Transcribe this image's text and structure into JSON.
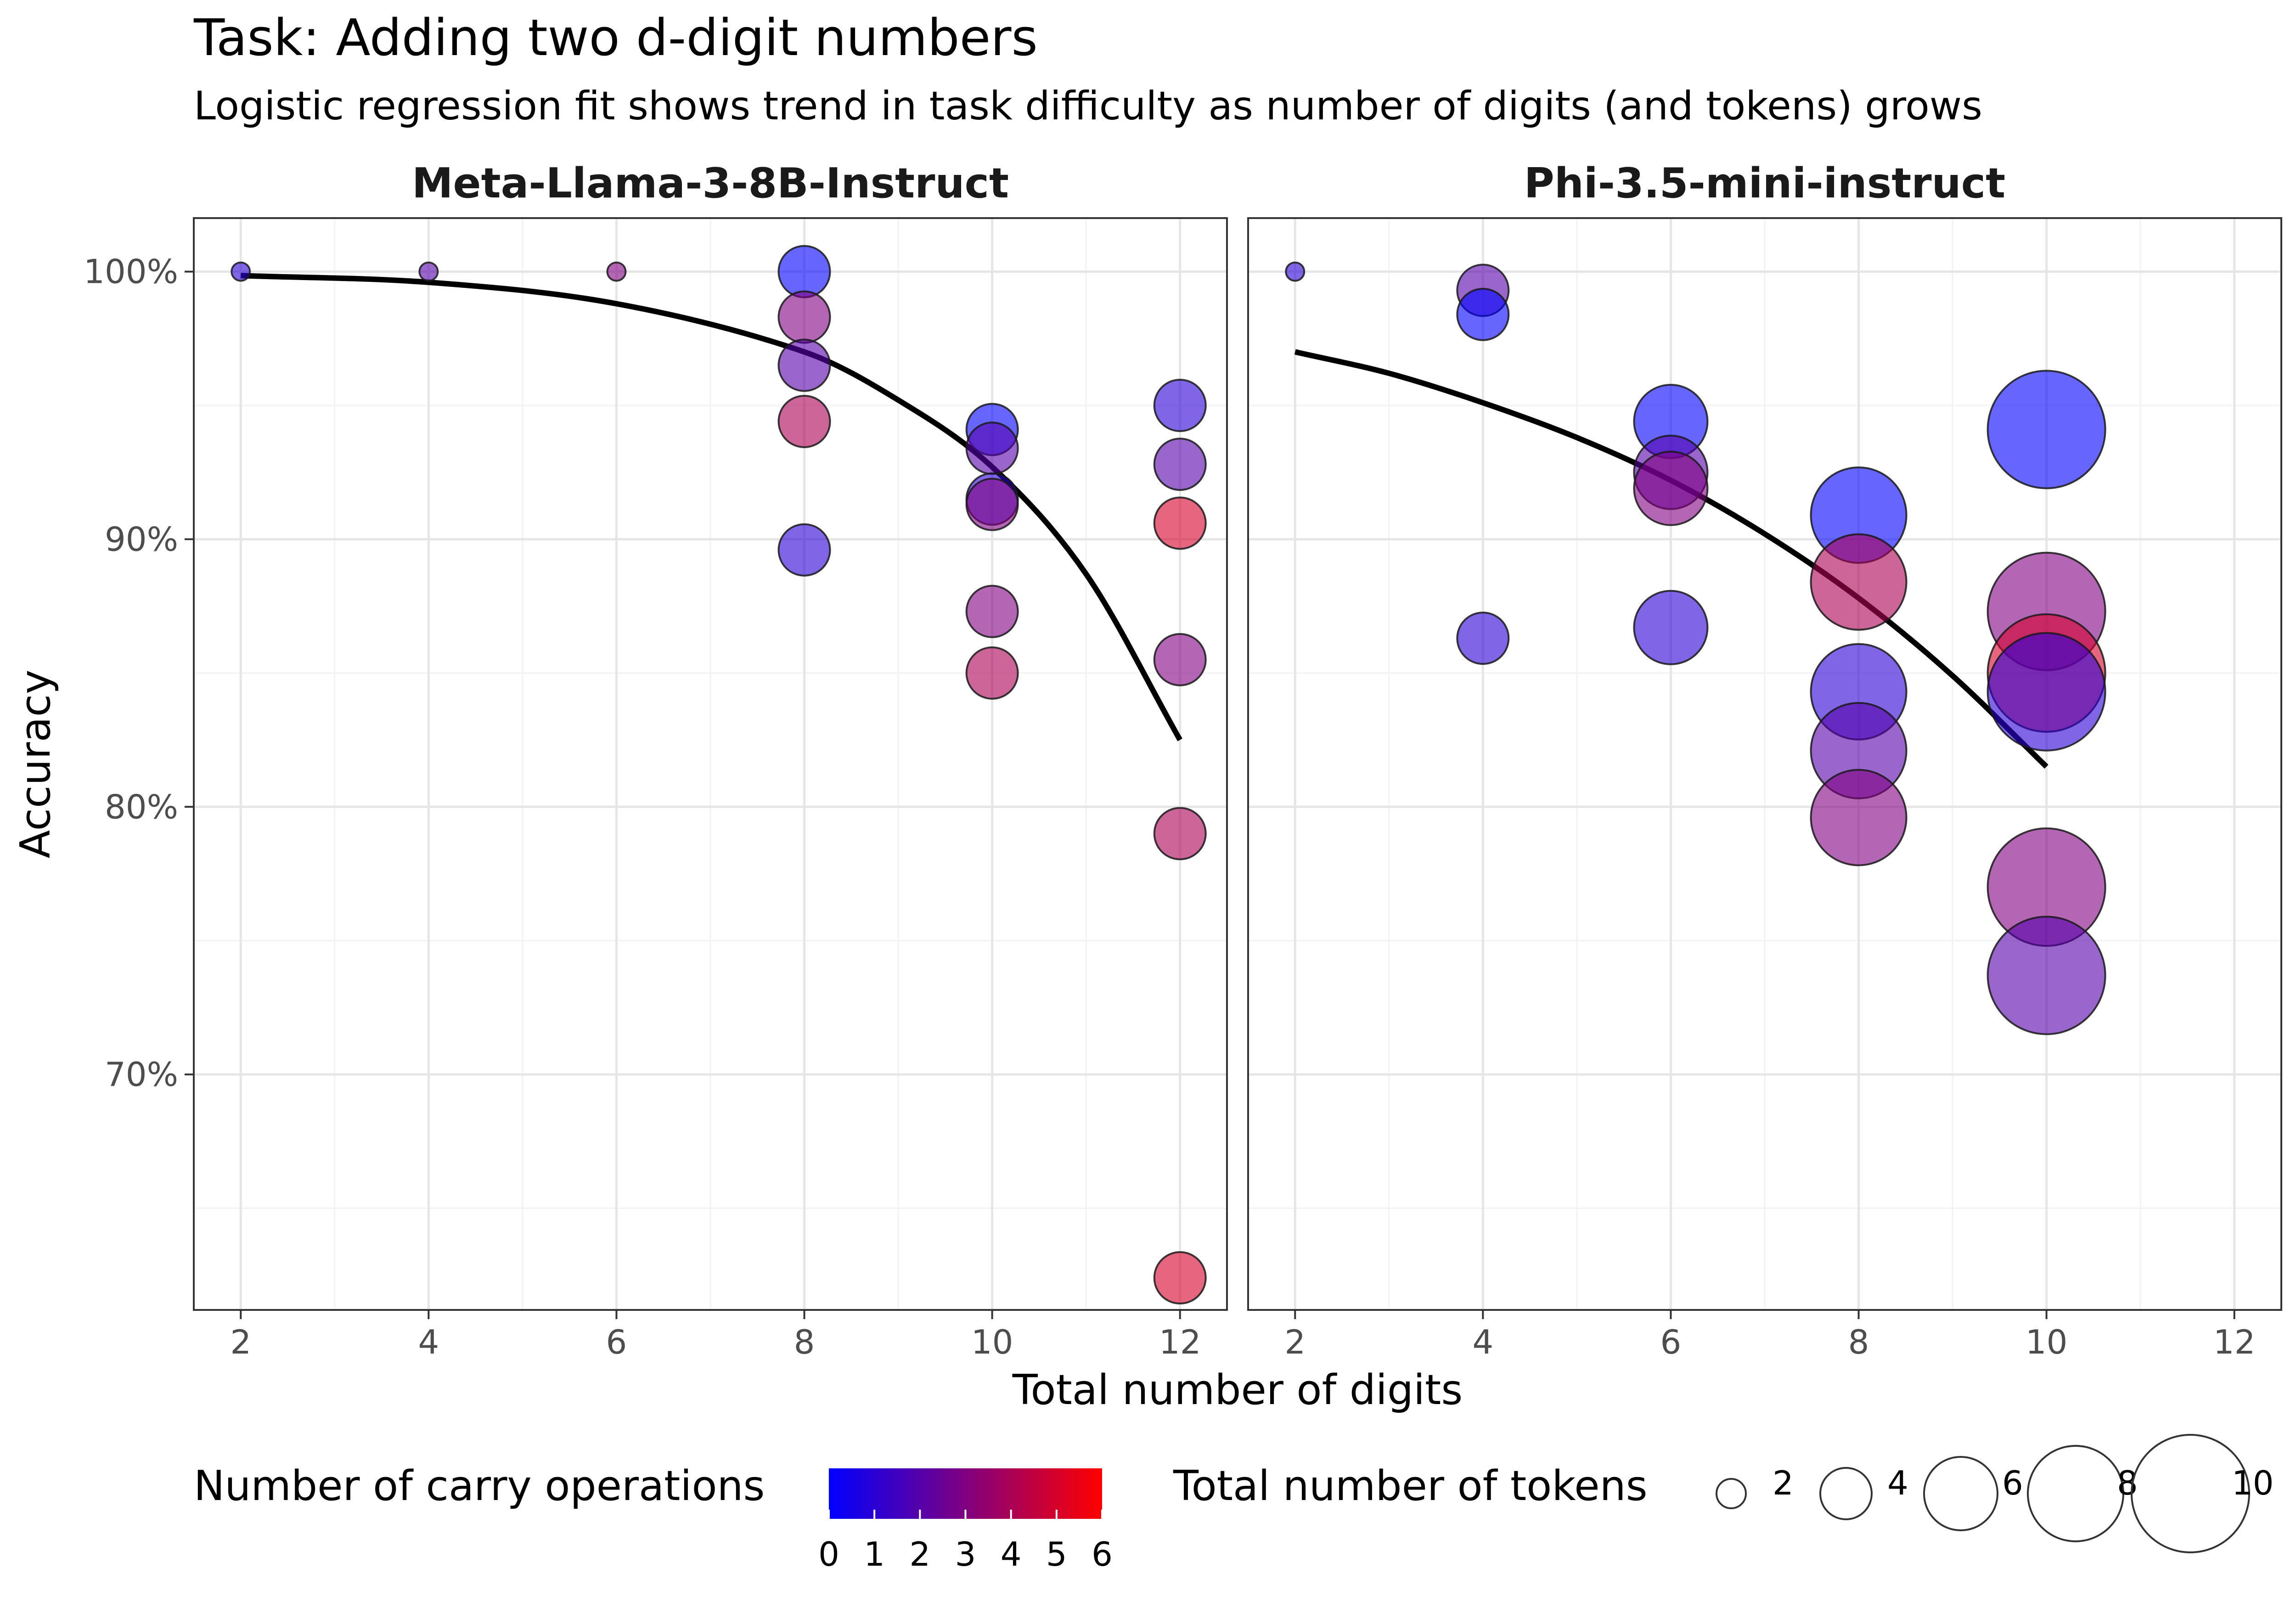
{
  "chart_data": {
    "type": "scatter",
    "title": "Task: Adding two d-digit numbers",
    "subtitle": "Logistic regression fit shows trend in task difficulty as number of digits (and tokens) grows",
    "xlabel": "Total number of digits",
    "ylabel": "Accuracy",
    "xlim": [
      1.5,
      12.5
    ],
    "ylim": [
      61.2,
      102
    ],
    "x_ticks": [
      2,
      4,
      6,
      8,
      10,
      12
    ],
    "y_ticks": [
      70,
      80,
      90,
      100
    ],
    "y_tick_labels": [
      "70%",
      "80%",
      "90%",
      "100%"
    ],
    "grid": true,
    "legend_position": "bottom",
    "legends": {
      "color": {
        "title": "Number of carry operations",
        "min": 0,
        "max": 6,
        "low_color": "#0000ff",
        "high_color": "#ff0000",
        "ticks": [
          0,
          1,
          2,
          3,
          4,
          5,
          6
        ]
      },
      "size": {
        "title": "Total number of tokens",
        "values": [
          2,
          4,
          6,
          8,
          10
        ]
      }
    },
    "panels": [
      {
        "name": "Meta-Llama-3-8B-Instruct",
        "points": [
          {
            "x": 2,
            "y": 100.0,
            "carry": 1,
            "tokens": 1
          },
          {
            "x": 4,
            "y": 100.0,
            "carry": 2,
            "tokens": 1
          },
          {
            "x": 6,
            "y": 100.0,
            "carry": 3,
            "tokens": 1
          },
          {
            "x": 8,
            "y": 100.0,
            "carry": 0,
            "tokens": 4
          },
          {
            "x": 8,
            "y": 98.3,
            "carry": 3,
            "tokens": 4
          },
          {
            "x": 8,
            "y": 96.5,
            "carry": 2,
            "tokens": 4
          },
          {
            "x": 8,
            "y": 94.4,
            "carry": 4,
            "tokens": 4
          },
          {
            "x": 8,
            "y": 89.6,
            "carry": 1,
            "tokens": 4
          },
          {
            "x": 10,
            "y": 94.1,
            "carry": 0,
            "tokens": 4
          },
          {
            "x": 10,
            "y": 93.4,
            "carry": 2,
            "tokens": 4
          },
          {
            "x": 10,
            "y": 91.5,
            "carry": 1,
            "tokens": 4
          },
          {
            "x": 10,
            "y": 91.3,
            "carry": 3,
            "tokens": 4
          },
          {
            "x": 10,
            "y": 87.3,
            "carry": 3,
            "tokens": 4
          },
          {
            "x": 10,
            "y": 85.0,
            "carry": 4,
            "tokens": 4
          },
          {
            "x": 12,
            "y": 95.0,
            "carry": 1,
            "tokens": 4
          },
          {
            "x": 12,
            "y": 92.8,
            "carry": 2,
            "tokens": 4
          },
          {
            "x": 12,
            "y": 90.6,
            "carry": 5,
            "tokens": 4
          },
          {
            "x": 12,
            "y": 85.5,
            "carry": 3,
            "tokens": 4
          },
          {
            "x": 12,
            "y": 79.0,
            "carry": 4,
            "tokens": 4
          },
          {
            "x": 12,
            "y": 62.4,
            "carry": 5,
            "tokens": 4
          }
        ],
        "fit": {
          "x": [
            2,
            4,
            6,
            8,
            9,
            10,
            11,
            12
          ],
          "y": [
            99.85,
            99.6,
            98.8,
            97.0,
            95.2,
            92.7,
            88.7,
            82.5
          ]
        }
      },
      {
        "name": "Phi-3.5-mini-instruct",
        "points": [
          {
            "x": 2,
            "y": 100.0,
            "carry": 1,
            "tokens": 1
          },
          {
            "x": 4,
            "y": 99.3,
            "carry": 2,
            "tokens": 4
          },
          {
            "x": 4,
            "y": 98.4,
            "carry": 0,
            "tokens": 4
          },
          {
            "x": 4,
            "y": 86.3,
            "carry": 1,
            "tokens": 4
          },
          {
            "x": 6,
            "y": 94.4,
            "carry": 0,
            "tokens": 6
          },
          {
            "x": 6,
            "y": 92.5,
            "carry": 2,
            "tokens": 6
          },
          {
            "x": 6,
            "y": 91.9,
            "carry": 3,
            "tokens": 6
          },
          {
            "x": 6,
            "y": 86.7,
            "carry": 1,
            "tokens": 6
          },
          {
            "x": 8,
            "y": 90.9,
            "carry": 0,
            "tokens": 8
          },
          {
            "x": 8,
            "y": 88.4,
            "carry": 4,
            "tokens": 8
          },
          {
            "x": 8,
            "y": 84.3,
            "carry": 1,
            "tokens": 8
          },
          {
            "x": 8,
            "y": 82.1,
            "carry": 2,
            "tokens": 8
          },
          {
            "x": 8,
            "y": 79.6,
            "carry": 3,
            "tokens": 8
          },
          {
            "x": 10,
            "y": 94.1,
            "carry": 0,
            "tokens": 10
          },
          {
            "x": 10,
            "y": 87.3,
            "carry": 3,
            "tokens": 10
          },
          {
            "x": 10,
            "y": 85.0,
            "carry": 5,
            "tokens": 10
          },
          {
            "x": 10,
            "y": 84.3,
            "carry": 1,
            "tokens": 10
          },
          {
            "x": 10,
            "y": 77.0,
            "carry": 3,
            "tokens": 10
          },
          {
            "x": 10,
            "y": 73.7,
            "carry": 2,
            "tokens": 10
          }
        ],
        "fit": {
          "x": [
            2,
            3,
            4,
            5,
            6,
            7,
            8,
            9,
            10
          ],
          "y": [
            97.0,
            96.2,
            95.1,
            93.8,
            92.2,
            90.2,
            87.8,
            84.9,
            81.5
          ]
        }
      }
    ]
  }
}
